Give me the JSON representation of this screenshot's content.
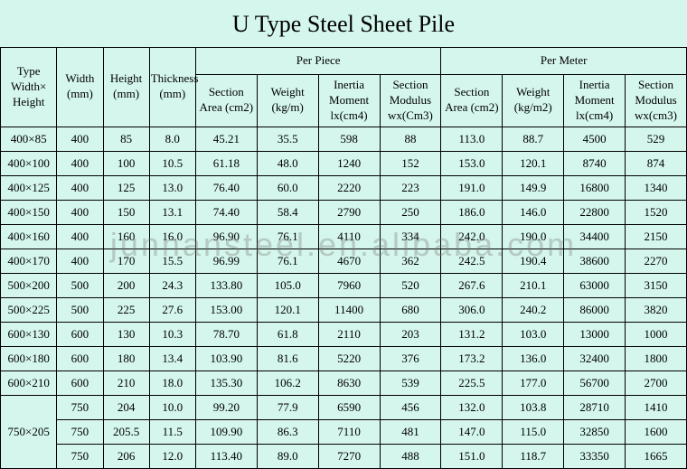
{
  "title": "U Type Steel Sheet Pile",
  "watermark": "junnansteel.en.alibaba.com",
  "background_color": "#d4f6ec",
  "border_color": "#000000",
  "title_fontsize": 26,
  "cell_fontsize": 13,
  "headers": {
    "type": "Type Width× Height",
    "width": "Width (mm)",
    "height": "Height (mm)",
    "thickness": "Thickness (mm)",
    "per_piece": "Per Piece",
    "per_meter": "Per Meter",
    "section_area_p": "Section Area (cm2)",
    "weight_p": "Weight (kg/m)",
    "inertia_p": "Inertia Moment lx(cm4)",
    "modulus_p": "Section Modulus wx(Cm3)",
    "section_area_m": "Section Area (cm2)",
    "weight_m": "Weight (kg/m2)",
    "inertia_m": "Inertia Moment lx(cm4)",
    "modulus_m": "Section Modulus wx(cm3)"
  },
  "rows": [
    {
      "type": "400×85",
      "w": "400",
      "h": "85",
      "t": "8.0",
      "sap": "45.21",
      "wp": "35.5",
      "ip": "598",
      "mp": "88",
      "sam": "113.0",
      "wm": "88.7",
      "im": "4500",
      "mm": "529"
    },
    {
      "type": "400×100",
      "w": "400",
      "h": "100",
      "t": "10.5",
      "sap": "61.18",
      "wp": "48.0",
      "ip": "1240",
      "mp": "152",
      "sam": "153.0",
      "wm": "120.1",
      "im": "8740",
      "mm": "874"
    },
    {
      "type": "400×125",
      "w": "400",
      "h": "125",
      "t": "13.0",
      "sap": "76.40",
      "wp": "60.0",
      "ip": "2220",
      "mp": "223",
      "sam": "191.0",
      "wm": "149.9",
      "im": "16800",
      "mm": "1340"
    },
    {
      "type": "400×150",
      "w": "400",
      "h": "150",
      "t": "13.1",
      "sap": "74.40",
      "wp": "58.4",
      "ip": "2790",
      "mp": "250",
      "sam": "186.0",
      "wm": "146.0",
      "im": "22800",
      "mm": "1520"
    },
    {
      "type": "400×160",
      "w": "400",
      "h": "160",
      "t": "16.0",
      "sap": "96.90",
      "wp": "76.1",
      "ip": "4110",
      "mp": "334",
      "sam": "242.0",
      "wm": "190.0",
      "im": "34400",
      "mm": "2150"
    },
    {
      "type": "400×170",
      "w": "400",
      "h": "170",
      "t": "15.5",
      "sap": "96.99",
      "wp": "76.1",
      "ip": "4670",
      "mp": "362",
      "sam": "242.5",
      "wm": "190.4",
      "im": "38600",
      "mm": "2270"
    },
    {
      "type": "500×200",
      "w": "500",
      "h": "200",
      "t": "24.3",
      "sap": "133.80",
      "wp": "105.0",
      "ip": "7960",
      "mp": "520",
      "sam": "267.6",
      "wm": "210.1",
      "im": "63000",
      "mm": "3150"
    },
    {
      "type": "500×225",
      "w": "500",
      "h": "225",
      "t": "27.6",
      "sap": "153.00",
      "wp": "120.1",
      "ip": "11400",
      "mp": "680",
      "sam": "306.0",
      "wm": "240.2",
      "im": "86000",
      "mm": "3820"
    },
    {
      "type": "600×130",
      "w": "600",
      "h": "130",
      "t": "10.3",
      "sap": "78.70",
      "wp": "61.8",
      "ip": "2110",
      "mp": "203",
      "sam": "131.2",
      "wm": "103.0",
      "im": "13000",
      "mm": "1000"
    },
    {
      "type": "600×180",
      "w": "600",
      "h": "180",
      "t": "13.4",
      "sap": "103.90",
      "wp": "81.6",
      "ip": "5220",
      "mp": "376",
      "sam": "173.2",
      "wm": "136.0",
      "im": "32400",
      "mm": "1800"
    },
    {
      "type": "600×210",
      "w": "600",
      "h": "210",
      "t": "18.0",
      "sap": "135.30",
      "wp": "106.2",
      "ip": "8630",
      "mp": "539",
      "sam": "225.5",
      "wm": "177.0",
      "im": "56700",
      "mm": "2700"
    }
  ],
  "merged_group": {
    "type": "750×205",
    "rows": [
      {
        "w": "750",
        "h": "204",
        "t": "10.0",
        "sap": "99.20",
        "wp": "77.9",
        "ip": "6590",
        "mp": "456",
        "sam": "132.0",
        "wm": "103.8",
        "im": "28710",
        "mm": "1410"
      },
      {
        "w": "750",
        "h": "205.5",
        "t": "11.5",
        "sap": "109.90",
        "wp": "86.3",
        "ip": "7110",
        "mp": "481",
        "sam": "147.0",
        "wm": "115.0",
        "im": "32850",
        "mm": "1600"
      },
      {
        "w": "750",
        "h": "206",
        "t": "12.0",
        "sap": "113.40",
        "wp": "89.0",
        "ip": "7270",
        "mp": "488",
        "sam": "151.0",
        "wm": "118.7",
        "im": "33350",
        "mm": "1665"
      }
    ]
  }
}
